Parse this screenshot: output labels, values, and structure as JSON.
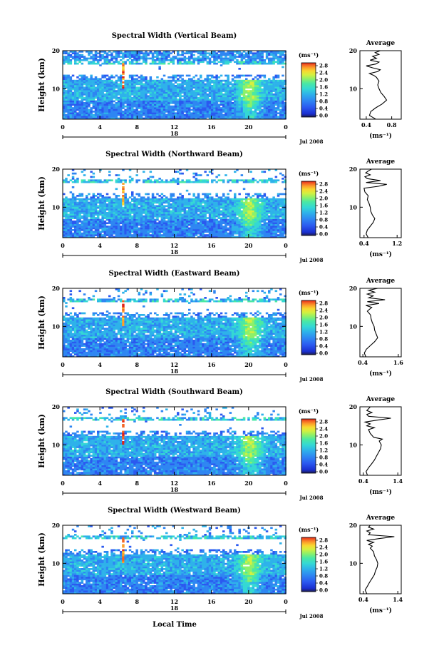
{
  "colorbar_colors": [
    "#1c1c50",
    "#1a2fd0",
    "#2b59f0",
    "#2e86f2",
    "#2eb2ea",
    "#34d8d4",
    "#4ae8a4",
    "#8cf06a",
    "#d4f040",
    "#f8d830",
    "#fca02a",
    "#f46424",
    "#e02418"
  ],
  "colorbar": {
    "unit": "(ms⁻¹)",
    "ticks": [
      "0.0",
      "0.4",
      "0.8",
      "1.2",
      "1.6",
      "2.0",
      "2.4",
      "2.8"
    ]
  },
  "date_label": "Jul 2008",
  "x_ticks": [
    "0",
    "4",
    "8",
    "12",
    "16",
    "20",
    "0"
  ],
  "day_label": "18",
  "ylabel": "Height (km)",
  "y_ticks": [
    "10",
    "20"
  ],
  "xlabel": "Local Time",
  "avg_title": "Average",
  "avg_xlabel": "(ms⁻¹)",
  "chart_data": [
    {
      "type": "heatmap",
      "title": "Spectral Width (Vertical Beam)",
      "x_range_hours": [
        0,
        24
      ],
      "y_range_km": [
        2,
        20
      ],
      "avg_x_ticks": [
        "0.4",
        "0.8"
      ],
      "avg_xlim": [
        0.3,
        0.95
      ],
      "avg_profile": [
        [
          0.55,
          2
        ],
        [
          0.5,
          2.5
        ],
        [
          0.45,
          3
        ],
        [
          0.47,
          4
        ],
        [
          0.55,
          5
        ],
        [
          0.65,
          6
        ],
        [
          0.72,
          7
        ],
        [
          0.68,
          8
        ],
        [
          0.63,
          9
        ],
        [
          0.6,
          10
        ],
        [
          0.58,
          11
        ],
        [
          0.6,
          12
        ],
        [
          0.56,
          13
        ],
        [
          0.52,
          13.5
        ],
        [
          0.45,
          14
        ],
        [
          0.58,
          14.5
        ],
        [
          0.62,
          15
        ],
        [
          0.5,
          15.5
        ],
        [
          0.4,
          16
        ],
        [
          0.55,
          16.5
        ],
        [
          0.6,
          17
        ],
        [
          0.46,
          17.5
        ],
        [
          0.56,
          18
        ],
        [
          0.5,
          18.5
        ],
        [
          0.6,
          19
        ],
        [
          0.54,
          19.5
        ],
        [
          0.62,
          20
        ]
      ]
    },
    {
      "type": "heatmap",
      "title": "Spectral Width (Northward Beam)",
      "x_range_hours": [
        0,
        24
      ],
      "y_range_km": [
        2,
        20
      ],
      "avg_x_ticks": [
        "0.4",
        "1.2"
      ],
      "avg_xlim": [
        0.3,
        1.3
      ],
      "avg_profile": [
        [
          0.5,
          2
        ],
        [
          0.45,
          3
        ],
        [
          0.48,
          4
        ],
        [
          0.55,
          5
        ],
        [
          0.62,
          6
        ],
        [
          0.66,
          7
        ],
        [
          0.6,
          8
        ],
        [
          0.56,
          9
        ],
        [
          0.55,
          10
        ],
        [
          0.52,
          11
        ],
        [
          0.48,
          12
        ],
        [
          0.5,
          13
        ],
        [
          0.42,
          14
        ],
        [
          0.4,
          15
        ],
        [
          0.75,
          15.5
        ],
        [
          0.95,
          16
        ],
        [
          0.45,
          16.5
        ],
        [
          0.8,
          17
        ],
        [
          0.48,
          17.5
        ],
        [
          0.42,
          18
        ],
        [
          0.55,
          18.5
        ],
        [
          0.44,
          19
        ],
        [
          0.5,
          19.5
        ],
        [
          0.58,
          20
        ]
      ]
    },
    {
      "type": "heatmap",
      "title": "Spectral Width (Eastward Beam)",
      "x_range_hours": [
        0,
        24
      ],
      "y_range_km": [
        2,
        20
      ],
      "avg_x_ticks": [
        "0.4",
        "1.6"
      ],
      "avg_xlim": [
        0.3,
        1.7
      ],
      "avg_profile": [
        [
          0.5,
          2
        ],
        [
          0.45,
          3
        ],
        [
          0.52,
          4
        ],
        [
          0.66,
          5
        ],
        [
          0.8,
          6
        ],
        [
          0.9,
          7
        ],
        [
          0.85,
          8
        ],
        [
          0.8,
          9
        ],
        [
          0.78,
          10
        ],
        [
          0.72,
          11
        ],
        [
          0.68,
          12
        ],
        [
          0.66,
          13
        ],
        [
          0.55,
          14
        ],
        [
          0.7,
          15
        ],
        [
          0.5,
          15.5
        ],
        [
          0.95,
          16
        ],
        [
          0.55,
          16.5
        ],
        [
          1.15,
          17
        ],
        [
          0.6,
          17.5
        ],
        [
          0.75,
          18
        ],
        [
          0.55,
          18.5
        ],
        [
          0.8,
          19
        ],
        [
          0.6,
          19.5
        ],
        [
          0.9,
          20
        ]
      ]
    },
    {
      "type": "heatmap",
      "title": "Spectral Width (Southward Beam)",
      "x_range_hours": [
        0,
        24
      ],
      "y_range_km": [
        2,
        20
      ],
      "avg_x_ticks": [
        "0.4",
        "1.4"
      ],
      "avg_xlim": [
        0.3,
        1.5
      ],
      "avg_profile": [
        [
          0.52,
          2
        ],
        [
          0.48,
          3
        ],
        [
          0.55,
          4
        ],
        [
          0.64,
          5
        ],
        [
          0.72,
          6
        ],
        [
          0.78,
          7
        ],
        [
          0.84,
          8
        ],
        [
          0.9,
          9
        ],
        [
          0.92,
          10
        ],
        [
          0.86,
          11
        ],
        [
          0.95,
          11.5
        ],
        [
          0.7,
          12
        ],
        [
          0.6,
          13
        ],
        [
          0.55,
          14
        ],
        [
          0.72,
          14.5
        ],
        [
          0.5,
          15
        ],
        [
          0.6,
          15.5
        ],
        [
          0.45,
          16
        ],
        [
          0.8,
          16.5
        ],
        [
          1.2,
          17
        ],
        [
          0.55,
          17.5
        ],
        [
          0.5,
          18
        ],
        [
          0.65,
          18.5
        ],
        [
          0.5,
          19
        ],
        [
          0.55,
          19.5
        ],
        [
          0.6,
          20
        ]
      ]
    },
    {
      "type": "heatmap",
      "title": "Spectral Width (Westward Beam)",
      "x_range_hours": [
        0,
        24
      ],
      "y_range_km": [
        2,
        20
      ],
      "avg_x_ticks": [
        "0.4",
        "1.4"
      ],
      "avg_xlim": [
        0.3,
        1.5
      ],
      "avg_profile": [
        [
          0.5,
          2
        ],
        [
          0.45,
          3
        ],
        [
          0.52,
          4
        ],
        [
          0.58,
          5
        ],
        [
          0.65,
          6
        ],
        [
          0.72,
          7
        ],
        [
          0.75,
          8
        ],
        [
          0.8,
          9
        ],
        [
          0.82,
          10
        ],
        [
          0.78,
          11
        ],
        [
          0.72,
          12
        ],
        [
          0.7,
          13
        ],
        [
          0.6,
          14
        ],
        [
          0.66,
          14.5
        ],
        [
          0.55,
          15
        ],
        [
          0.7,
          15.5
        ],
        [
          0.5,
          16
        ],
        [
          0.85,
          16.5
        ],
        [
          1.3,
          17
        ],
        [
          0.55,
          17.5
        ],
        [
          0.6,
          18
        ],
        [
          0.5,
          18.5
        ],
        [
          0.7,
          19
        ],
        [
          0.55,
          19.5
        ],
        [
          0.6,
          20
        ]
      ]
    }
  ]
}
